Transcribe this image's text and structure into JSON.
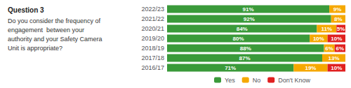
{
  "chart_data": {
    "type": "bar",
    "title": "Question 3",
    "subtitle": "Do you consider the frequency of\nengagement  between your\nauthority and your Safety Camera\nUnit is appropriate?",
    "orientation": "horizontal",
    "stacked": true,
    "data_labels": true,
    "tick_labels": "y",
    "grid": false,
    "legend": "bottom",
    "categories": [
      "2022/23",
      "2021/22",
      "2020/21",
      "2019/20",
      "2018/19",
      "2017/18",
      "2016/17"
    ],
    "xlim": [
      0,
      100
    ],
    "series": [
      {
        "name": "Yes",
        "color": "#3a9a3a",
        "values": [
          91,
          92,
          84,
          80,
          88,
          87,
          71
        ],
        "value_labels": [
          "91%",
          "92%",
          "84%",
          "80%",
          "88%",
          "87%",
          "71%"
        ]
      },
      {
        "name": "No",
        "color": "#f5a800",
        "values": [
          9,
          8,
          11,
          10,
          6,
          13,
          19
        ],
        "value_labels": [
          "9%",
          "8%",
          "11%",
          "10%",
          "6%",
          "13%",
          "19%"
        ]
      },
      {
        "name": "Don't Know",
        "color": "#e02020",
        "values": [
          0,
          0,
          5,
          10,
          6,
          0,
          10
        ],
        "value_labels": [
          null,
          null,
          "5%",
          "10%",
          "6%",
          null,
          "10%"
        ]
      }
    ]
  }
}
